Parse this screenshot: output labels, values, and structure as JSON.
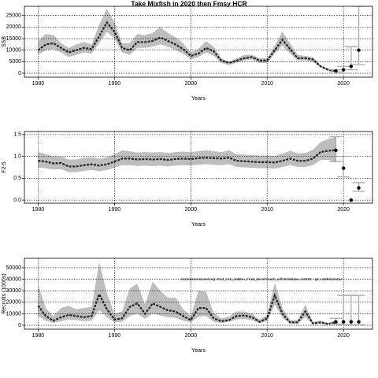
{
  "title": "Take Mixfish in 2020 then Fmsy HCR",
  "chart_data": [
    {
      "type": "line",
      "ylabel": "SSB",
      "xlabel": "Years",
      "x": [
        1980,
        1981,
        1982,
        1983,
        1984,
        1985,
        1986,
        1987,
        1988,
        1989,
        1990,
        1991,
        1992,
        1993,
        1994,
        1995,
        1996,
        1997,
        1998,
        1999,
        2000,
        2001,
        2002,
        2003,
        2004,
        2005,
        2006,
        2007,
        2008,
        2009,
        2010,
        2011,
        2012,
        2013,
        2014,
        2015,
        2016,
        2017,
        2018,
        2019
      ],
      "values": [
        10000,
        12500,
        13000,
        11000,
        9000,
        10000,
        11000,
        10500,
        16000,
        22000,
        18000,
        11000,
        10000,
        13500,
        13500,
        14000,
        15500,
        14000,
        12500,
        10500,
        7500,
        8500,
        11000,
        9500,
        5500,
        4500,
        5500,
        6500,
        7000,
        5500,
        5500,
        10000,
        14500,
        10500,
        6500,
        6500,
        6000,
        3000,
        1500,
        1000
      ],
      "upper": [
        14000,
        17000,
        16500,
        13000,
        11000,
        12500,
        13500,
        12500,
        21000,
        28000,
        22000,
        13000,
        13000,
        17000,
        16500,
        17500,
        20000,
        17500,
        15500,
        13000,
        9000,
        10500,
        14000,
        11500,
        6500,
        5000,
        6500,
        8000,
        8000,
        6500,
        6500,
        12000,
        18000,
        13000,
        8000,
        7500,
        7000,
        3500,
        2000,
        1500
      ],
      "lower": [
        8000,
        10000,
        10500,
        9000,
        7000,
        8000,
        9000,
        8500,
        13000,
        18000,
        15000,
        9000,
        8000,
        11000,
        11000,
        11500,
        12500,
        11500,
        10000,
        8500,
        6000,
        7000,
        9000,
        7500,
        4500,
        3500,
        4500,
        5500,
        6000,
        4500,
        4500,
        8500,
        12000,
        8500,
        5500,
        5500,
        5000,
        2500,
        1000,
        600
      ],
      "proj_x": [
        2019,
        2020,
        2021,
        2022
      ],
      "proj_values": [
        1000,
        1500,
        3000,
        10000
      ],
      "proj_lower": [
        600,
        0,
        1500,
        3800
      ],
      "proj_upper": [
        1500,
        3000,
        11500,
        29000
      ],
      "band_color": "#bebebe",
      "line_color": "#222222",
      "point_color": "#000000",
      "errbar_color": "#aaaaaa",
      "xlim": [
        1978.2,
        2023.8
      ],
      "xticks": [
        1980,
        1990,
        2000,
        2010,
        2020
      ],
      "ylim": [
        -1700,
        29000
      ],
      "yticks": [
        0,
        5000,
        10000,
        15000,
        20000,
        25000
      ],
      "grid": true
    },
    {
      "type": "line",
      "ylabel": "F2-5",
      "xlabel": "Years",
      "x": [
        1980,
        1981,
        1982,
        1983,
        1984,
        1985,
        1986,
        1987,
        1988,
        1989,
        1990,
        1991,
        1992,
        1993,
        1994,
        1995,
        1996,
        1997,
        1998,
        1999,
        2000,
        2001,
        2002,
        2003,
        2004,
        2005,
        2006,
        2007,
        2008,
        2009,
        2010,
        2011,
        2012,
        2013,
        2014,
        2015,
        2016,
        2017,
        2018,
        2019
      ],
      "values": [
        0.9,
        0.88,
        0.84,
        0.85,
        0.77,
        0.77,
        0.8,
        0.82,
        0.79,
        0.82,
        0.88,
        0.95,
        0.95,
        0.93,
        0.94,
        0.93,
        0.94,
        0.92,
        0.94,
        0.95,
        0.94,
        0.96,
        0.97,
        0.96,
        0.95,
        0.97,
        0.9,
        0.89,
        0.88,
        0.87,
        0.87,
        0.86,
        0.9,
        0.95,
        0.9,
        0.9,
        0.95,
        1.1,
        1.13,
        1.14
      ],
      "upper": [
        1.1,
        1.05,
        1.0,
        1.0,
        0.93,
        0.93,
        0.97,
        0.98,
        0.95,
        0.98,
        1.05,
        1.14,
        1.12,
        1.09,
        1.1,
        1.09,
        1.1,
        1.08,
        1.1,
        1.11,
        1.1,
        1.12,
        1.14,
        1.12,
        1.1,
        1.14,
        1.05,
        1.04,
        1.03,
        1.02,
        1.02,
        1.01,
        1.06,
        1.13,
        1.07,
        1.08,
        1.15,
        1.33,
        1.4,
        1.45
      ],
      "lower": [
        0.75,
        0.73,
        0.7,
        0.71,
        0.64,
        0.64,
        0.67,
        0.69,
        0.66,
        0.69,
        0.74,
        0.8,
        0.8,
        0.78,
        0.79,
        0.78,
        0.79,
        0.77,
        0.79,
        0.8,
        0.79,
        0.81,
        0.82,
        0.81,
        0.8,
        0.82,
        0.76,
        0.75,
        0.74,
        0.73,
        0.73,
        0.72,
        0.76,
        0.8,
        0.76,
        0.76,
        0.8,
        0.92,
        0.92,
        0.88
      ],
      "proj_x": [
        2019,
        2020,
        2021,
        2022
      ],
      "proj_values": [
        1.14,
        0.73,
        0.0,
        0.28
      ],
      "proj_lower": [
        0.88,
        0.53,
        0.0,
        0.2
      ],
      "proj_upper": [
        1.45,
        1.0,
        0.0,
        0.4
      ],
      "band_color": "#bebebe",
      "line_color": "#222222",
      "point_color": "#000000",
      "errbar_color": "#aaaaaa",
      "xlim": [
        1978.2,
        2023.8
      ],
      "xticks": [
        1980,
        1990,
        2000,
        2010,
        2020
      ],
      "ylim": [
        -0.07,
        1.57
      ],
      "yticks": [
        {
          "value": 0,
          "label": "0.0"
        },
        {
          "value": 0.5,
          "label": "0.5"
        },
        {
          "value": 1,
          "label": "1.0"
        },
        {
          "value": 1.5,
          "label": "1.5"
        }
      ],
      "grid": true
    },
    {
      "type": "line",
      "ylabel": "Recruits (1000s)",
      "xlabel": "Years",
      "annotation": "stockassessment.org: Cod_7ek_4a3NA_Final_Benchmark_with2019data, r13525 - git: c28bdc2e4ae",
      "x": [
        1980,
        1981,
        1982,
        1983,
        1984,
        1985,
        1986,
        1987,
        1988,
        1989,
        1990,
        1991,
        1992,
        1993,
        1994,
        1995,
        1996,
        1997,
        1998,
        1999,
        2000,
        2001,
        2002,
        2003,
        2004,
        2005,
        2006,
        2007,
        2008,
        2009,
        2010,
        2011,
        2012,
        2013,
        2014,
        2015,
        2016,
        2017,
        2018,
        2019
      ],
      "values": [
        17000,
        8000,
        4000,
        7000,
        9000,
        8000,
        7000,
        8000,
        27000,
        14000,
        5000,
        6000,
        16000,
        19000,
        10000,
        19000,
        16000,
        13000,
        12000,
        8000,
        4500,
        15000,
        15000,
        6000,
        3500,
        4500,
        8000,
        8500,
        7000,
        3000,
        6000,
        26000,
        10000,
        2500,
        2500,
        12000,
        1500,
        2500,
        1000,
        2500
      ],
      "upper": [
        35000,
        15000,
        8000,
        15000,
        17000,
        14000,
        15000,
        16000,
        55000,
        28000,
        10000,
        12000,
        32000,
        36000,
        18000,
        38000,
        30000,
        24000,
        24000,
        14000,
        8000,
        30000,
        29000,
        11000,
        6000,
        7500,
        12000,
        12000,
        10000,
        5000,
        9000,
        37000,
        15000,
        4500,
        4500,
        18000,
        3000,
        4000,
        2000,
        5000
      ],
      "lower": [
        8000,
        4000,
        2000,
        3500,
        5000,
        4500,
        3500,
        4000,
        13000,
        7000,
        2500,
        3000,
        8000,
        10000,
        5500,
        10000,
        8500,
        7000,
        6500,
        4000,
        2500,
        7500,
        8000,
        3000,
        2000,
        3000,
        5000,
        5500,
        4500,
        1800,
        3500,
        18000,
        6500,
        1500,
        1500,
        7000,
        800,
        1500,
        500,
        1200
      ],
      "proj_x": [
        2019,
        2020,
        2021,
        2022
      ],
      "proj_values": [
        3000,
        3000,
        3000,
        3000
      ],
      "proj_lower": [
        1000,
        500,
        500,
        500
      ],
      "proj_upper": [
        6000,
        26000,
        26000,
        26000
      ],
      "band_color": "#bebebe",
      "line_color": "#222222",
      "point_color": "#000000",
      "errbar_color": "#aaaaaa",
      "xlim": [
        1978.2,
        2023.8
      ],
      "xticks": [
        1980,
        1990,
        2000,
        2010,
        2020
      ],
      "ylim": [
        -3400,
        58200
      ],
      "yticks": [
        0,
        10000,
        20000,
        30000,
        40000,
        50000
      ],
      "grid": true
    }
  ]
}
